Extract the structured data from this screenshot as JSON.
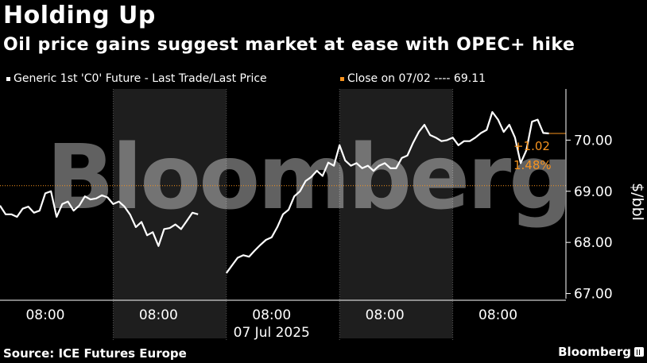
{
  "header": {
    "title": "Holding Up",
    "subtitle": "Oil price gains suggest market at ease with OPEC+ hike"
  },
  "legend": {
    "series_label": "Generic 1st 'C0' Future - Last Trade/Last Price",
    "close_label": "Close on 07/02 ---- 69.11"
  },
  "footer": {
    "source": "Source: ICE Futures Europe",
    "brand": "Bloomberg"
  },
  "watermark": "Bloomberg",
  "colors": {
    "series": "#ffffff",
    "close_line": "#f7931e",
    "change": "#f7931e",
    "shade": "#1e1e1e",
    "grid": "#555555"
  },
  "chart_data": {
    "type": "line",
    "ylabel": "$/bbl",
    "ylim": [
      66.9,
      71.0
    ],
    "yticks": [
      67.0,
      68.0,
      69.0,
      70.0
    ],
    "ytick_labels": [
      "67.00",
      "68.00",
      "69.00",
      "70.00"
    ],
    "xlim": [
      0,
      5
    ],
    "xticks": [
      0.4,
      1.4,
      2.4,
      3.4,
      4.4
    ],
    "xtick_labels": [
      "08:00",
      "08:00",
      "08:00",
      "08:00",
      "08:00"
    ],
    "xdate_label": "07 Jul 2025",
    "xdate_at": 2.4,
    "sessions": [
      [
        0,
        1
      ],
      [
        1,
        2
      ],
      [
        2,
        3
      ],
      [
        3,
        4
      ],
      [
        4,
        5
      ]
    ],
    "shaded_sessions": [
      1,
      3
    ],
    "reference_line": {
      "label": "Close on 07/02",
      "value": 69.11
    },
    "last_value": 70.13,
    "change_abs": "+1.02",
    "change_pct": "1.48%",
    "series": [
      {
        "name": "Generic 1st 'C0' Future - Last Trade/Last Price",
        "segments": [
          {
            "x": [
              0.0,
              0.05,
              0.1,
              0.15,
              0.2,
              0.25,
              0.3,
              0.35,
              0.4,
              0.45,
              0.5,
              0.55,
              0.6,
              0.65,
              0.7,
              0.75,
              0.8,
              0.85,
              0.9,
              0.95,
              1.0,
              1.05,
              1.1,
              1.15,
              1.2,
              1.25,
              1.3,
              1.35,
              1.4,
              1.45,
              1.5,
              1.55,
              1.6,
              1.65,
              1.7,
              1.75
            ],
            "y": [
              68.72,
              68.55,
              68.55,
              68.5,
              68.66,
              68.7,
              68.58,
              68.62,
              68.96,
              69.0,
              68.5,
              68.75,
              68.8,
              68.62,
              68.72,
              68.9,
              68.84,
              68.86,
              68.92,
              68.88,
              68.75,
              68.8,
              68.7,
              68.54,
              68.3,
              68.4,
              68.14,
              68.2,
              67.93,
              68.26,
              68.28,
              68.35,
              68.26,
              68.42,
              68.58,
              68.55
            ]
          },
          {
            "x": [
              2.0,
              2.05,
              2.1,
              2.15,
              2.2,
              2.25,
              2.3,
              2.35,
              2.4,
              2.45,
              2.5,
              2.55,
              2.6,
              2.65,
              2.7,
              2.75,
              2.8,
              2.85,
              2.9,
              2.95,
              3.0,
              3.05,
              3.1,
              3.15,
              3.2,
              3.25,
              3.3,
              3.35,
              3.4,
              3.45,
              3.5,
              3.55,
              3.6,
              3.65,
              3.7,
              3.75,
              3.8,
              3.85,
              3.9,
              3.95,
              4.0,
              4.05,
              4.1,
              4.15,
              4.2,
              4.25,
              4.3,
              4.35,
              4.4,
              4.45,
              4.5,
              4.55,
              4.6,
              4.65,
              4.7,
              4.75,
              4.8,
              4.85
            ],
            "y": [
              67.4,
              67.55,
              67.7,
              67.75,
              67.72,
              67.84,
              67.95,
              68.05,
              68.1,
              68.3,
              68.55,
              68.64,
              68.9,
              69.0,
              69.2,
              69.28,
              69.4,
              69.3,
              69.56,
              69.5,
              69.9,
              69.6,
              69.5,
              69.55,
              69.45,
              69.5,
              69.4,
              69.5,
              69.55,
              69.45,
              69.45,
              69.65,
              69.7,
              69.95,
              70.16,
              70.3,
              70.1,
              70.05,
              69.98,
              70.0,
              70.05,
              69.9,
              69.98,
              69.98,
              70.05,
              70.14,
              70.2,
              70.55,
              70.4,
              70.16,
              70.3,
              70.05,
              69.55,
              69.8,
              70.36,
              70.4,
              70.14,
              70.13
            ]
          }
        ]
      }
    ]
  }
}
